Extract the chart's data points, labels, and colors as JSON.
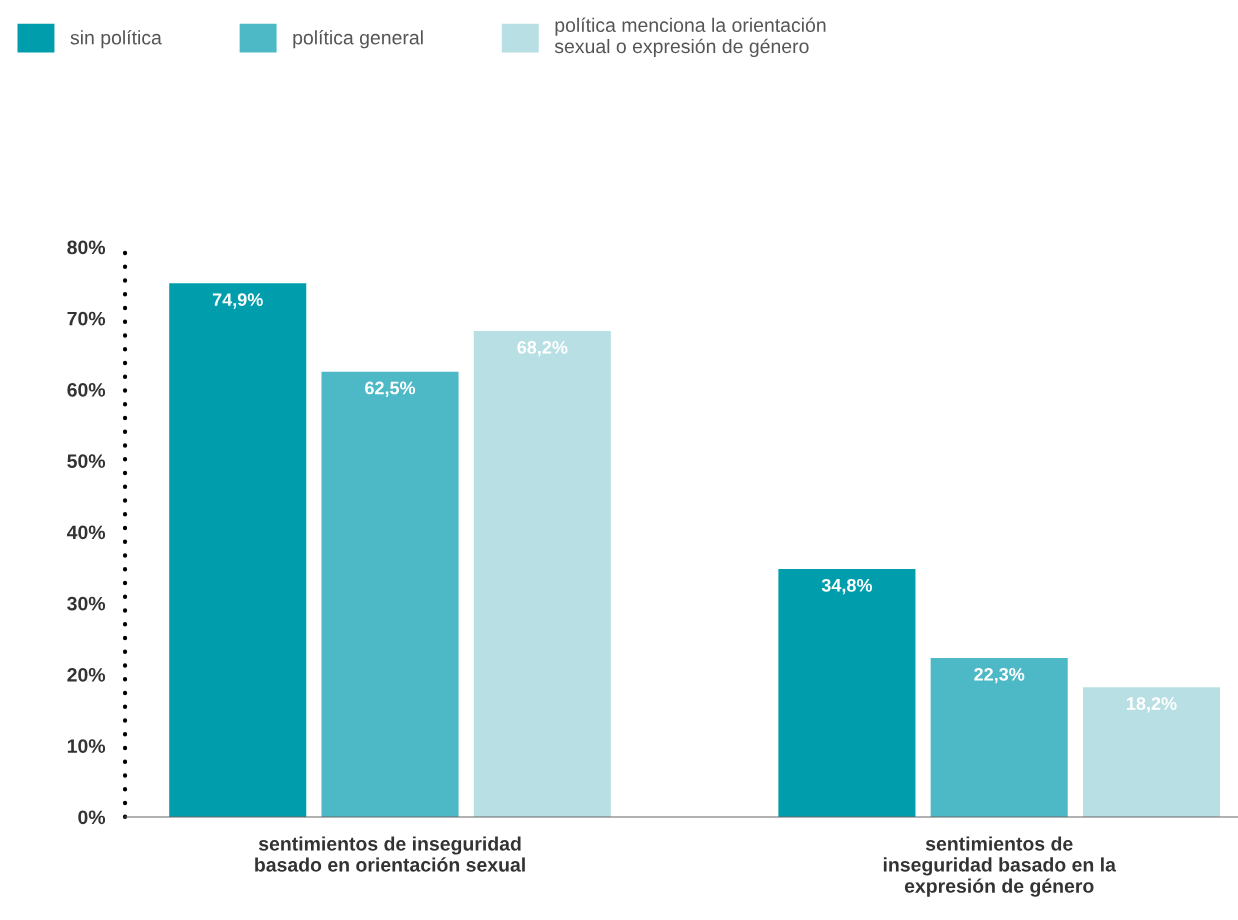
{
  "chart_data": {
    "type": "bar",
    "categories": [
      "sentimientos de inseguridad\nbasado en orientación sexual",
      "sentimientos de\ninseguridad basado en la\nexpresión de género"
    ],
    "series": [
      {
        "name": "sin política",
        "color": "#009eac",
        "values": [
          74.9,
          34.8
        ],
        "value_labels": [
          "74,9%",
          "34,8%"
        ]
      },
      {
        "name": "política general",
        "color": "#4db9c6",
        "values": [
          62.5,
          22.3
        ],
        "value_labels": [
          "62,5%",
          "22,3%"
        ]
      },
      {
        "name": "política menciona la orientación\nsexual o expresión de género",
        "color": "#b8dfe4",
        "values": [
          68.2,
          18.2
        ],
        "value_labels": [
          "68,2%",
          "18,2%"
        ]
      }
    ],
    "ylim": [
      0,
      80
    ],
    "yticks": [
      {
        "value": 0,
        "label": "0%"
      },
      {
        "value": 10,
        "label": "10%"
      },
      {
        "value": 20,
        "label": "20%"
      },
      {
        "value": 30,
        "label": "30%"
      },
      {
        "value": 40,
        "label": "40%"
      },
      {
        "value": 50,
        "label": "50%"
      },
      {
        "value": 60,
        "label": "60%"
      },
      {
        "value": 70,
        "label": "70%"
      },
      {
        "value": 80,
        "label": "80%"
      }
    ],
    "grid": false,
    "legend": "top left"
  }
}
